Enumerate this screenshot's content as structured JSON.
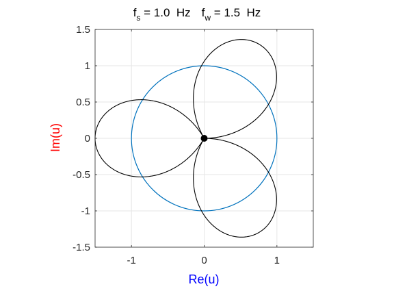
{
  "chart_data": {
    "type": "line",
    "title": {
      "f_s_symbol": "f",
      "f_s_sub": "s",
      "f_s_value": " = 1.0  Hz",
      "f_w_symbol": "f",
      "f_w_sub": "w",
      "f_w_value": " = 1.5  Hz"
    },
    "xlabel": "Re(u)",
    "ylabel": "Im(u)",
    "xlim": [
      -1.5,
      1.5
    ],
    "ylim": [
      -1.5,
      1.5
    ],
    "x_ticks": [
      -1,
      0,
      1
    ],
    "x_tick_labels": [
      "-1",
      "0",
      "1"
    ],
    "y_ticks": [
      -1.5,
      -1,
      -0.5,
      0,
      0.5,
      1,
      1.5
    ],
    "y_tick_labels": [
      "-1.5",
      "-1",
      "-0.5",
      "0",
      "0.5",
      "1",
      "1.5"
    ],
    "grid": true,
    "aspect": "equal",
    "unit_circle": {
      "center": [
        0,
        0
      ],
      "radius": 1,
      "color": "#0072BD"
    },
    "trajectory": {
      "color": "#000000",
      "frequency_ratio": 1.5,
      "radial_max": 1.5
    },
    "origin_marker": {
      "x": 0,
      "y": 0,
      "color": "#000000"
    },
    "colors": {
      "xlabel": "#0000FF",
      "ylabel": "#FF0000",
      "grid": "#e6e6e6",
      "axes": "#262626"
    }
  }
}
